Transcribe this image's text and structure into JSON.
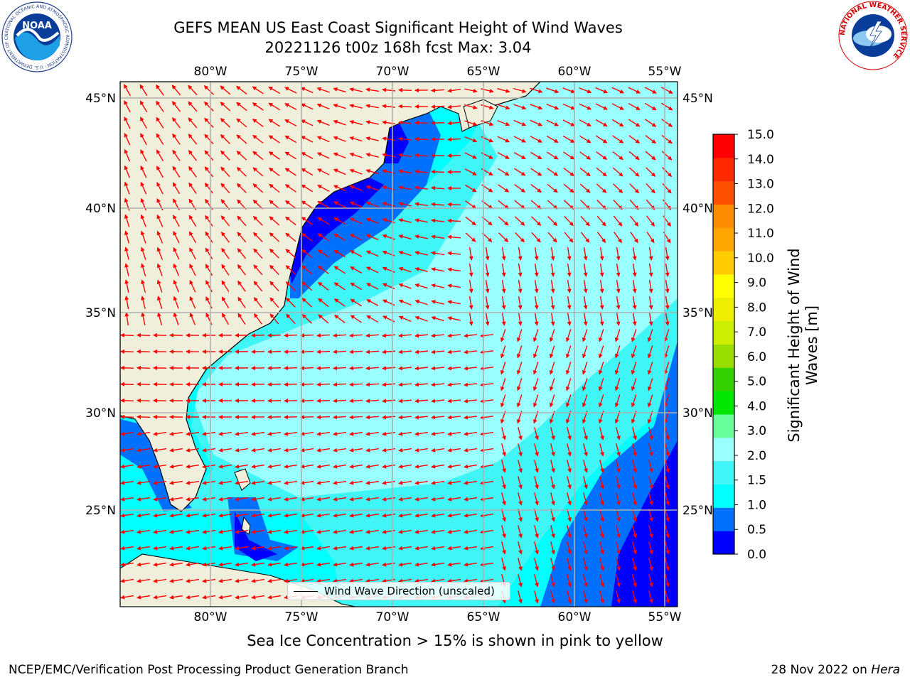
{
  "title": {
    "line1": "GEFS MEAN US East Coast Significant Height of Wind Waves",
    "line2": "20221126 t00z 168h fcst   Max: 3.04"
  },
  "logos": {
    "left": "NOAA",
    "left_ring": "NATIONAL OCEANIC AND ATMOSPHERIC ADMINISTRATION · U.S. DEPARTMENT OF COMMERCE",
    "right_ring": "NATIONAL WEATHER SERVICE"
  },
  "map": {
    "lon_labels": [
      "80°W",
      "75°W",
      "70°W",
      "65°W",
      "60°W",
      "55°W"
    ],
    "lat_labels": [
      "45°N",
      "40°N",
      "35°N",
      "30°N",
      "25°N"
    ],
    "legend_label": "Wind Wave Direction (unscaled)",
    "land_color": "#efefdb",
    "vector_color": "#ff0000"
  },
  "colorbar": {
    "title": "Significant Height of Wind Waves [m]",
    "tick_labels": [
      "15.0",
      "14.0",
      "13.0",
      "12.0",
      "11.0",
      "10.0",
      "9.0",
      "8.0",
      "7.0",
      "6.0",
      "5.0",
      "4.0",
      "3.0",
      "2.0",
      "1.5",
      "1.0",
      "0.5",
      "0.0"
    ],
    "colors_bottom_to_top": [
      "#0000ff",
      "#0070ff",
      "#00ffff",
      "#3ff5f5",
      "#99ffff",
      "#66ff99",
      "#00e600",
      "#33d100",
      "#99dd00",
      "#ccee00",
      "#eeee00",
      "#ffff00",
      "#ffcc00",
      "#ffa500",
      "#ff8c00",
      "#ff5000",
      "#ff2a00",
      "#ff0000"
    ]
  },
  "ice_note": "Sea Ice Concentration > 15% is shown in pink to yellow",
  "footer": {
    "left": "NCEP/EMC/Verification Post Processing Product Generation Branch",
    "right_date": "28 Nov 2022 on ",
    "right_system": "Hera"
  }
}
